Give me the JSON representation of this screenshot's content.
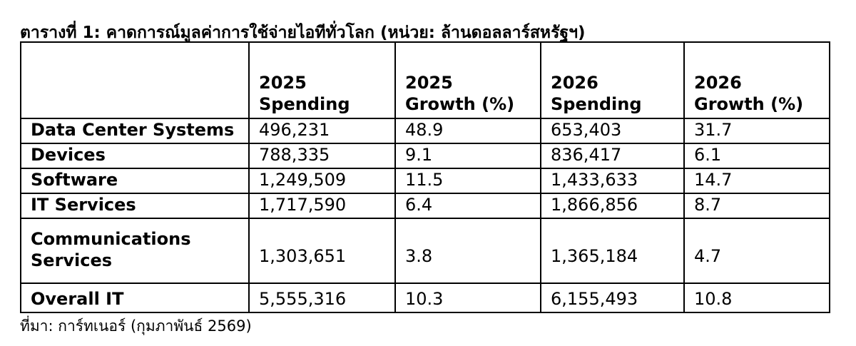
{
  "title": "ตารางที่ 1: คาดการณ์มูลค่าการใช้จ่ายไอทีทั่วโลก (หน่วย: ล้านดอลลาร์สหรัฐฯ)",
  "table": {
    "columns": [
      "2025\nSpending",
      "2025\nGrowth (%)",
      "2026\nSpending",
      "2026\nGrowth (%)"
    ],
    "rows": [
      [
        "Data Center Systems",
        "496,231",
        "48.9",
        "653,403",
        "31.7"
      ],
      [
        "Devices",
        "788,335",
        "9.1",
        "836,417",
        "6.1"
      ],
      [
        "Software",
        "1,249,509",
        "11.5",
        "1,433,633",
        "14.7"
      ],
      [
        "IT Services",
        "1,717,590",
        "6.4",
        "1,866,856",
        "8.7"
      ],
      [
        "Communications\nServices",
        "1,303,651",
        "3.8",
        "1,365,184",
        "4.7"
      ],
      [
        "Overall IT",
        "5,555,316",
        "10.3",
        "6,155,493",
        "10.8"
      ]
    ]
  },
  "source": "ที่มา: การ์ทเนอร์ (กุมภาพันธ์ 2569)"
}
